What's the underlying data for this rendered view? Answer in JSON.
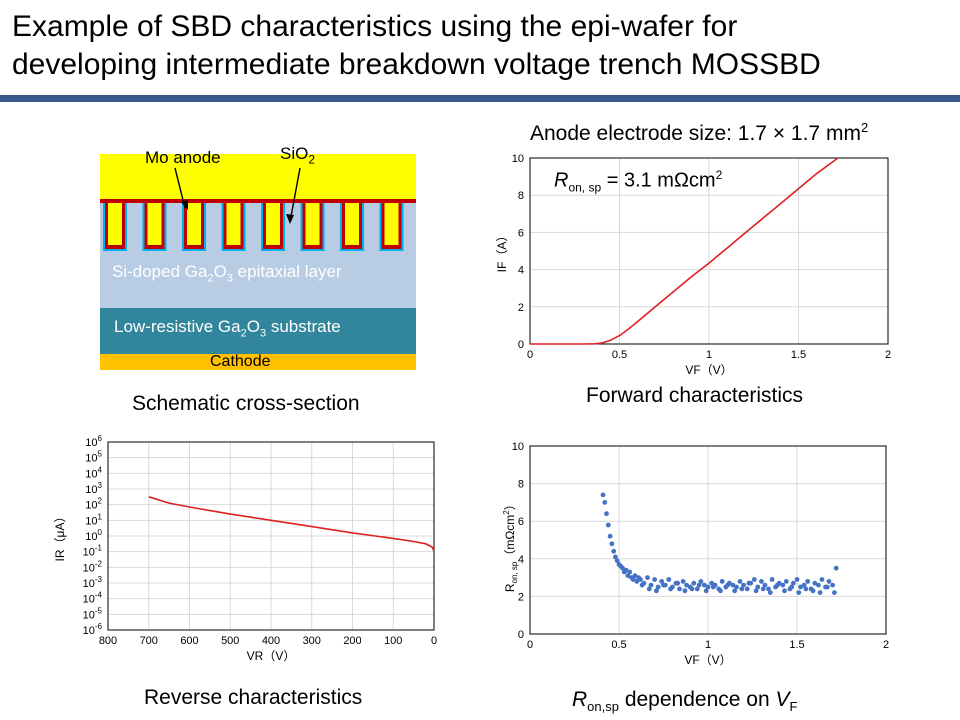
{
  "slide": {
    "title_line1": "Example of SBD characteristics using the epi-wafer for",
    "title_line2": "developing intermediate breakdown voltage trench MOSSBD"
  },
  "cross_section": {
    "caption": "Schematic cross-section",
    "labels": {
      "mo_anode": "Mo anode",
      "sio2_main": "SiO",
      "sio2_sub": "2",
      "epi_prefix": "Si-doped Ga",
      "epi_sub1": "2",
      "epi_mid": "O",
      "epi_sub2": "3",
      "epi_suffix": " epitaxial layer",
      "sub_prefix": "Low-resistive Ga",
      "sub_sub1": "2",
      "sub_mid": "O",
      "sub_sub2": "3",
      "sub_suffix": " substrate",
      "cathode": "Cathode"
    },
    "colors": {
      "anode": "#ffff00",
      "oxide_line": "#c00000",
      "oxide_blue": "#00b0f0",
      "epi_layer": "#b8cce4",
      "substrate": "#31859c",
      "cathode": "#ffc000"
    }
  },
  "forward": {
    "chart_title_main": "Anode electrode size: 1.7 × 1.7 mm",
    "chart_title_sup": "2",
    "caption": "Forward characteristics",
    "annotation": {
      "r": "R",
      "sub": "on, sp",
      "value": " = 3.1 mΩcm",
      "sup": "2"
    }
  },
  "reverse": {
    "caption": "Reverse characteristics"
  },
  "ron": {
    "caption_r": "R",
    "caption_sub": "on,sp",
    "caption_mid": " dependence on ",
    "caption_v": "V",
    "caption_vsub": "F",
    "ylabel_r": "R",
    "ylabel_sub": "on, sp",
    "ylabel_unit": "（mΩcm",
    "ylabel_sup": "2",
    "ylabel_close": "）"
  },
  "chart_data": [
    {
      "type": "line",
      "xlabel": "VF（V）",
      "ylabel": "IF（A）",
      "xlim": [
        0,
        2
      ],
      "ylim": [
        0,
        10
      ],
      "xticks": [
        "0",
        "0.5",
        "1",
        "1.5",
        "2"
      ],
      "yticks": [
        "0",
        "2",
        "4",
        "6",
        "8",
        "10"
      ],
      "grid": true,
      "color": "#e02020",
      "series": [
        {
          "x": [
            0,
            0.3,
            0.36,
            0.4,
            0.45,
            0.5,
            0.55,
            0.6,
            0.7,
            0.8,
            0.9,
            1.0,
            1.1,
            1.2,
            1.3,
            1.4,
            1.5,
            1.6,
            1.72
          ],
          "y": [
            0,
            0,
            0.01,
            0.05,
            0.2,
            0.45,
            0.8,
            1.2,
            2.0,
            2.8,
            3.6,
            4.35,
            5.15,
            5.95,
            6.75,
            7.55,
            8.35,
            9.15,
            10.0
          ]
        }
      ]
    },
    {
      "type": "line",
      "xlabel": "VR（V）",
      "ylabel": "IR（μA）",
      "xlim": [
        800,
        0
      ],
      "ylim_log10": [
        -6,
        6
      ],
      "xticks": [
        "800",
        "700",
        "600",
        "500",
        "400",
        "300",
        "200",
        "100",
        "0"
      ],
      "ytick_exponents": [
        6,
        5,
        4,
        3,
        2,
        1,
        0,
        -1,
        -2,
        -3,
        -4,
        -5,
        -6
      ],
      "grid": true,
      "color": "#e02020",
      "series": [
        {
          "x": [
            700,
            650,
            600,
            500,
            400,
            300,
            200,
            100,
            50,
            20,
            5,
            0
          ],
          "log10_y": [
            2.5,
            2.1,
            1.85,
            1.4,
            1.0,
            0.6,
            0.2,
            -0.15,
            -0.35,
            -0.5,
            -0.7,
            -0.95
          ]
        }
      ]
    },
    {
      "type": "scatter",
      "xlabel": "VF（V）",
      "xlim": [
        0,
        2
      ],
      "ylim": [
        0,
        10
      ],
      "xticks": [
        "0",
        "0.5",
        "1",
        "1.5",
        "2"
      ],
      "yticks": [
        "0",
        "2",
        "4",
        "6",
        "8",
        "10"
      ],
      "grid": true,
      "color": "#4472c4",
      "series": [
        {
          "x": [
            0.41,
            0.42,
            0.43,
            0.44,
            0.45,
            0.46,
            0.47,
            0.48,
            0.49,
            0.5,
            0.51,
            0.52,
            0.53,
            0.54,
            0.55,
            0.56,
            0.57,
            0.58,
            0.59,
            0.6,
            0.62,
            0.64,
            0.66,
            0.68,
            0.7,
            0.72,
            0.74,
            0.76,
            0.78,
            0.8,
            0.82,
            0.84,
            0.86,
            0.88,
            0.9,
            0.92,
            0.94,
            0.96,
            0.98,
            1.0,
            1.02,
            1.04,
            1.06,
            1.08,
            1.1,
            1.12,
            1.14,
            1.16,
            1.18,
            1.2,
            1.22,
            1.24,
            1.26,
            1.28,
            1.3,
            1.32,
            1.34,
            1.36,
            1.38,
            1.4,
            1.42,
            1.44,
            1.46,
            1.48,
            1.5,
            1.52,
            1.54,
            1.56,
            1.58,
            1.6,
            1.62,
            1.64,
            1.66,
            1.68,
            1.7,
            1.72,
            0.61,
            0.63,
            0.67,
            0.71,
            0.75,
            0.79,
            0.83,
            0.87,
            0.91,
            0.95,
            0.99,
            1.03,
            1.07,
            1.11,
            1.15,
            1.19,
            1.23,
            1.27,
            1.31,
            1.35,
            1.39,
            1.43,
            1.47,
            1.51,
            1.55,
            1.59,
            1.63,
            1.67,
            1.71
          ],
          "y": [
            7.4,
            7.0,
            6.4,
            5.8,
            5.2,
            4.8,
            4.4,
            4.1,
            3.9,
            3.7,
            3.6,
            3.5,
            3.3,
            3.4,
            3.1,
            3.3,
            3.0,
            2.9,
            3.1,
            2.8,
            2.9,
            2.7,
            3.0,
            2.6,
            2.9,
            2.5,
            2.8,
            2.6,
            2.9,
            2.5,
            2.7,
            2.4,
            2.8,
            2.6,
            2.5,
            2.7,
            2.4,
            2.8,
            2.6,
            2.5,
            2.7,
            2.6,
            2.4,
            2.8,
            2.5,
            2.7,
            2.6,
            2.5,
            2.8,
            2.6,
            2.4,
            2.7,
            2.9,
            2.5,
            2.8,
            2.6,
            2.4,
            2.9,
            2.5,
            2.7,
            2.6,
            2.8,
            2.4,
            2.7,
            2.9,
            2.5,
            2.6,
            2.8,
            2.4,
            2.7,
            2.6,
            2.9,
            2.5,
            2.8,
            2.6,
            3.5,
            3.0,
            2.6,
            2.4,
            2.3,
            2.6,
            2.4,
            2.7,
            2.3,
            2.4,
            2.6,
            2.3,
            2.5,
            2.3,
            2.6,
            2.3,
            2.4,
            2.7,
            2.3,
            2.4,
            2.2,
            2.6,
            2.3,
            2.5,
            2.2,
            2.4,
            2.3,
            2.2,
            2.5,
            2.2
          ]
        }
      ]
    }
  ]
}
